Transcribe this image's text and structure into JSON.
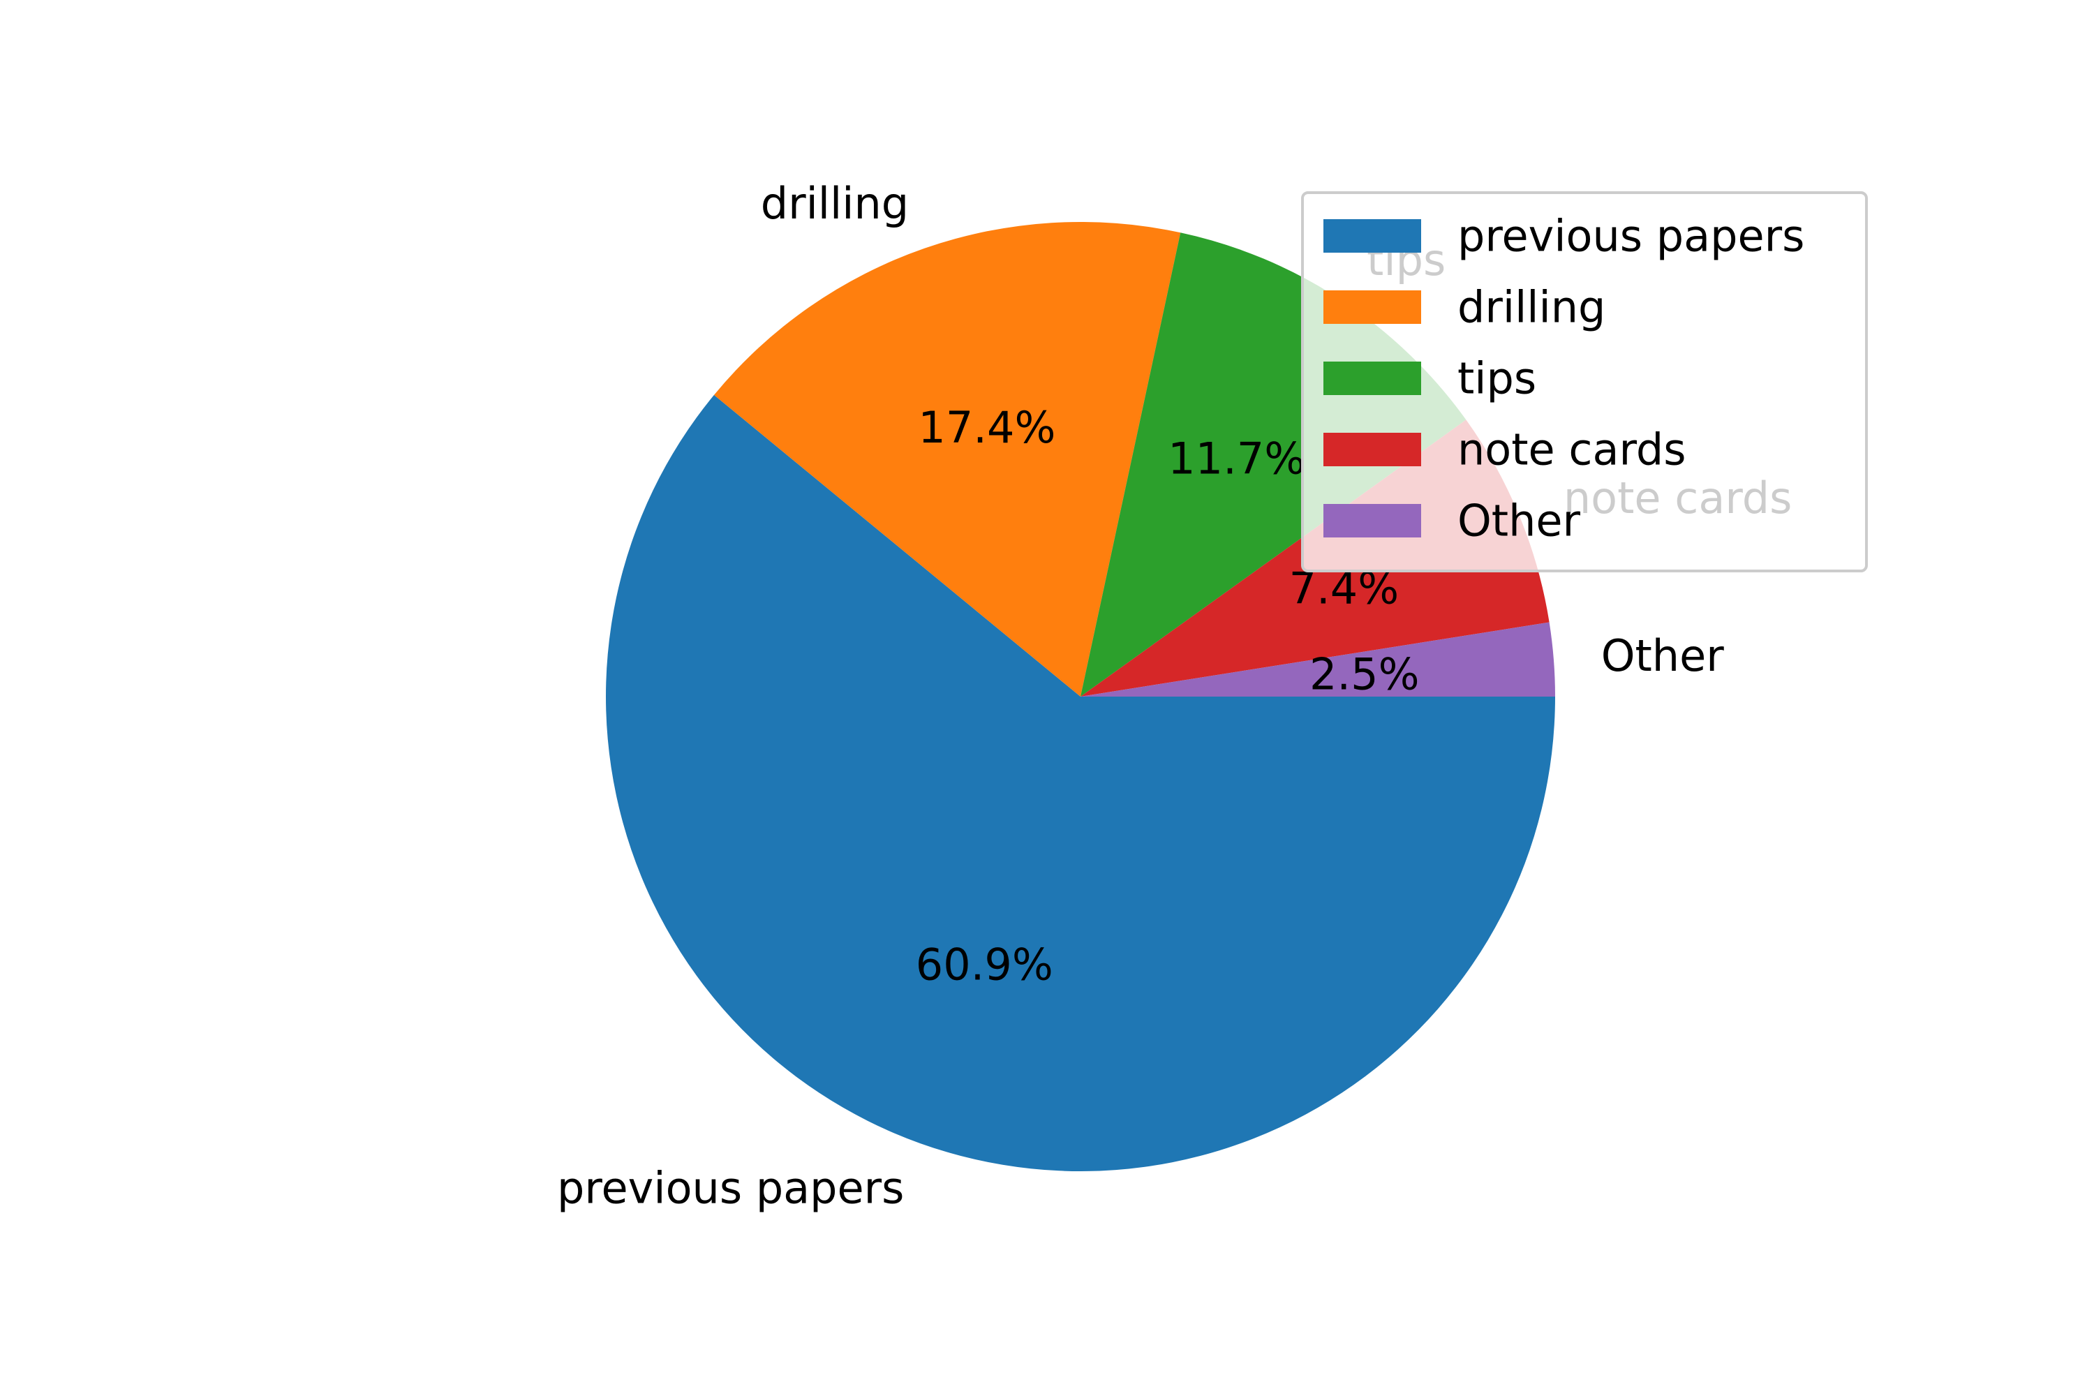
{
  "chart_data": {
    "type": "pie",
    "categories": [
      "previous papers",
      "drilling",
      "tips",
      "note cards",
      "Other"
    ],
    "values": [
      60.9,
      17.4,
      11.7,
      7.4,
      2.5
    ],
    "value_labels": [
      "60.9%",
      "17.4%",
      "11.7%",
      "7.4%",
      "2.5%"
    ],
    "colors": [
      "#1f77b4",
      "#ff7f0e",
      "#2ca02c",
      "#d62728",
      "#9467bd"
    ],
    "start_angle_deg": 0,
    "direction": "clockwise",
    "legend": {
      "placement": "upper-right",
      "entries": [
        "previous papers",
        "drilling",
        "tips",
        "note cards",
        "Other"
      ]
    }
  }
}
